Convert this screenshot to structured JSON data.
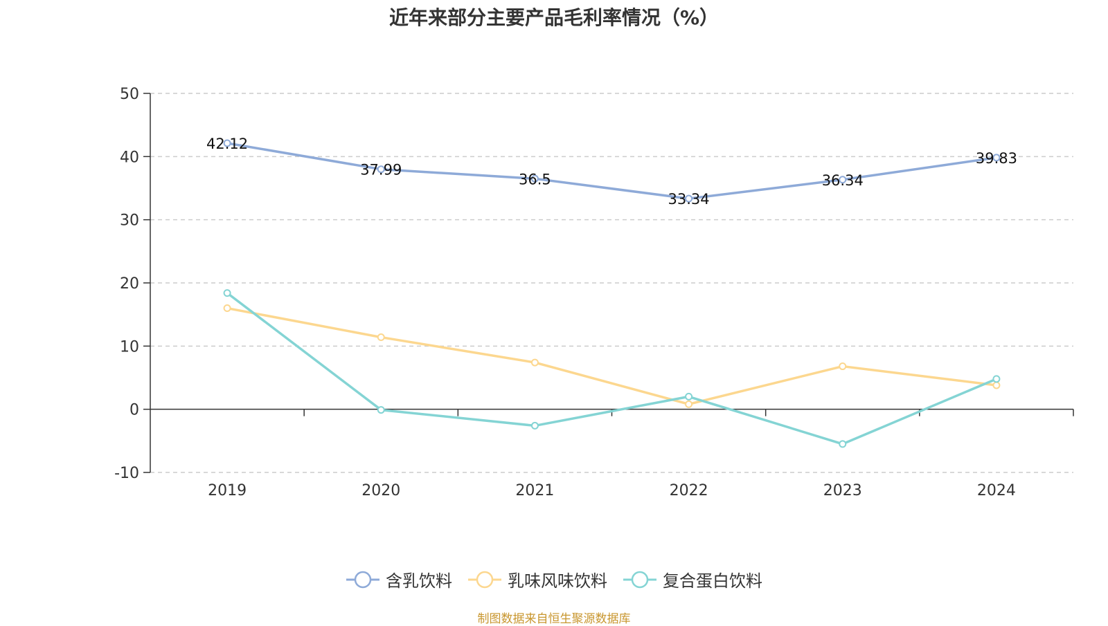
{
  "chart_data": {
    "type": "line",
    "title": "近年来部分主要产品毛利率情况（%）",
    "categories": [
      "2019",
      "2020",
      "2021",
      "2022",
      "2023",
      "2024"
    ],
    "ylim": [
      -10,
      50
    ],
    "yticks": [
      -10,
      0,
      10,
      20,
      30,
      40,
      50
    ],
    "grid": true,
    "legend_position": "bottom",
    "series": [
      {
        "name": "含乳饮料",
        "values": [
          42.12,
          37.99,
          36.5,
          33.34,
          36.34,
          39.83
        ],
        "labels": [
          "42.12",
          "37.99",
          "36.5",
          "33.34",
          "36.34",
          "39.83"
        ],
        "color": "#8eaad8"
      },
      {
        "name": "乳味风味饮料",
        "values": [
          16.0,
          11.4,
          7.4,
          0.8,
          6.8,
          3.8
        ],
        "color": "#fcd78f"
      },
      {
        "name": "复合蛋白饮料",
        "values": [
          18.4,
          -0.1,
          -2.6,
          2.0,
          -5.5,
          4.8
        ],
        "color": "#84d4d4"
      }
    ]
  },
  "source": "制图数据来自恒生聚源数据库"
}
